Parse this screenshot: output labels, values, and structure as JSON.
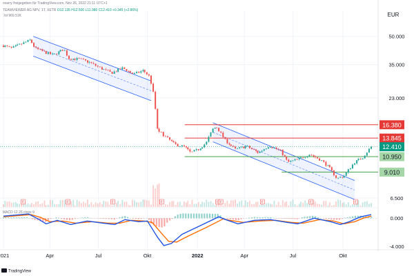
{
  "header": {
    "published_by": "ovarry freigegeben für TradingView.com, Nov 26, 2022 21:11 UTC+1",
    "symbol_line": "TEAMVIEWER AG NPV, 1T, XETR",
    "ohlc_values": "O12.135 H12.500 L11.980 C12.410 +0.345 (+2.86%)",
    "volume_line": "Vol 969.51K",
    "currency": "EUR"
  },
  "footer": {
    "brand": "TradingView"
  },
  "macd_label": "MACD 12 26 close 9",
  "colors": {
    "up": "#26a69a",
    "down": "#ef5350",
    "channel": "#2962ff",
    "resistance": "#e53935",
    "support": "#43a047",
    "macd_line": "#1e53e5",
    "signal_line": "#ff6d00",
    "price_tag": "#089981"
  },
  "chart_data": {
    "type": "candlestick",
    "y_scale": "log",
    "ylim": [
      5.8,
      62
    ],
    "price_ticks": [
      50.0,
      35.0,
      23.0,
      6.5
    ],
    "price_tick_labels": [
      "50.000",
      "35.000",
      "23.000",
      "6.500"
    ],
    "x_tick_labels": [
      "2021",
      "Apr",
      "Jul",
      "Okt",
      "2022",
      "Apr",
      "Jul",
      "Okt"
    ],
    "x_tick_dates": [
      "2021-01-04",
      "2021-04-01",
      "2021-07-01",
      "2021-10-01",
      "2022-01-03",
      "2022-04-01",
      "2022-07-01",
      "2022-10-03"
    ],
    "price_path": [
      [
        "2021-01-04",
        44.5
      ],
      [
        "2021-01-20",
        43.0
      ],
      [
        "2021-02-08",
        45.5
      ],
      [
        "2021-02-24",
        47.8
      ],
      [
        "2021-03-05",
        43.0
      ],
      [
        "2021-03-22",
        41.0
      ],
      [
        "2021-04-08",
        39.5
      ],
      [
        "2021-04-28",
        42.5
      ],
      [
        "2021-05-07",
        37.8
      ],
      [
        "2021-05-27",
        37.5
      ],
      [
        "2021-06-15",
        36.0
      ],
      [
        "2021-07-05",
        33.5
      ],
      [
        "2021-07-26",
        31.5
      ],
      [
        "2021-08-16",
        33.5
      ],
      [
        "2021-09-06",
        31.0
      ],
      [
        "2021-09-24",
        32.5
      ],
      [
        "2021-10-06",
        30.0
      ],
      [
        "2021-10-13",
        24.0
      ],
      [
        "2021-10-20",
        15.5
      ],
      [
        "2021-11-05",
        14.0
      ],
      [
        "2021-11-22",
        12.8
      ],
      [
        "2021-12-10",
        12.4
      ],
      [
        "2021-12-22",
        11.5
      ],
      [
        "2022-01-05",
        12.0
      ],
      [
        "2022-01-20",
        13.0
      ],
      [
        "2022-02-01",
        15.5
      ],
      [
        "2022-02-08",
        16.0
      ],
      [
        "2022-02-24",
        13.5
      ],
      [
        "2022-03-15",
        12.0
      ],
      [
        "2022-04-05",
        12.5
      ],
      [
        "2022-04-28",
        11.5
      ],
      [
        "2022-05-18",
        12.6
      ],
      [
        "2022-06-08",
        11.8
      ],
      [
        "2022-06-22",
        10.2
      ],
      [
        "2022-07-12",
        10.6
      ],
      [
        "2022-08-02",
        11.3
      ],
      [
        "2022-08-23",
        10.5
      ],
      [
        "2022-09-08",
        9.5
      ],
      [
        "2022-09-22",
        8.3
      ],
      [
        "2022-10-06",
        8.6
      ],
      [
        "2022-10-25",
        10.2
      ],
      [
        "2022-11-09",
        10.8
      ],
      [
        "2022-11-25",
        12.41
      ]
    ],
    "resistance_levels": [
      16.38,
      13.845
    ],
    "support_levels": [
      10.95,
      9.01
    ],
    "last_price": 12.41,
    "price_labels": [
      {
        "value": 16.38,
        "text": "16.380",
        "kind": "resistance"
      },
      {
        "value": 13.845,
        "text": "13.845",
        "kind": "resistance"
      },
      {
        "value": 12.41,
        "text": "12.410",
        "kind": "last"
      },
      {
        "value": 10.95,
        "text": "10.950",
        "kind": "support"
      },
      {
        "value": 9.01,
        "text": "9.010",
        "kind": "support"
      }
    ],
    "channels": [
      {
        "start": [
          "2021-03-01",
          50.0
        ],
        "end": [
          "2021-10-08",
          28.5
        ],
        "width_log": 0.25
      },
      {
        "start": [
          "2022-02-01",
          16.8
        ],
        "end": [
          "2022-10-25",
          8.1
        ],
        "width_log": 0.24
      }
    ],
    "earnings_marker_dates": [
      "2021-02-10",
      "2021-05-05",
      "2021-07-28",
      "2021-10-28",
      "2022-02-10",
      "2022-02-16",
      "2022-05-05",
      "2022-08-04",
      "2022-10-27"
    ],
    "earnings_marker_text": "E",
    "macd": {
      "ylim": [
        -4.3,
        1.3
      ],
      "ticks": [
        0.0,
        -4.0
      ],
      "tick_labels": [
        "0.000",
        "-4.000"
      ],
      "macd_path": [
        [
          "2021-01-04",
          0.3
        ],
        [
          "2021-02-20",
          0.6
        ],
        [
          "2021-03-10",
          -0.1
        ],
        [
          "2021-03-25",
          -0.8
        ],
        [
          "2021-04-15",
          -0.3
        ],
        [
          "2021-05-10",
          -0.9
        ],
        [
          "2021-06-10",
          -0.4
        ],
        [
          "2021-07-10",
          -0.7
        ],
        [
          "2021-08-01",
          -0.9
        ],
        [
          "2021-08-20",
          -0.2
        ],
        [
          "2021-09-15",
          -0.5
        ],
        [
          "2021-10-01",
          -0.4
        ],
        [
          "2021-10-20",
          -2.7
        ],
        [
          "2021-11-01",
          -3.9
        ],
        [
          "2021-11-15",
          -3.6
        ],
        [
          "2021-12-05",
          -2.3
        ],
        [
          "2022-01-10",
          -1.0
        ],
        [
          "2022-02-12",
          0.2
        ],
        [
          "2022-02-25",
          -0.2
        ],
        [
          "2022-03-20",
          -0.8
        ],
        [
          "2022-04-20",
          -0.3
        ],
        [
          "2022-05-20",
          -0.2
        ],
        [
          "2022-06-20",
          -0.6
        ],
        [
          "2022-07-10",
          -0.8
        ],
        [
          "2022-08-10",
          0.0
        ],
        [
          "2022-09-10",
          -0.5
        ],
        [
          "2022-09-28",
          -0.9
        ],
        [
          "2022-10-15",
          -0.5
        ],
        [
          "2022-11-05",
          0.2
        ],
        [
          "2022-11-25",
          0.5
        ]
      ],
      "signal_path": [
        [
          "2021-01-04",
          0.2
        ],
        [
          "2021-02-25",
          0.5
        ],
        [
          "2021-03-15",
          0.1
        ],
        [
          "2021-04-01",
          -0.5
        ],
        [
          "2021-04-25",
          -0.4
        ],
        [
          "2021-05-20",
          -0.7
        ],
        [
          "2021-06-20",
          -0.5
        ],
        [
          "2021-07-20",
          -0.7
        ],
        [
          "2021-08-10",
          -0.7
        ],
        [
          "2021-09-01",
          -0.3
        ],
        [
          "2021-09-25",
          -0.4
        ],
        [
          "2021-10-10",
          -0.6
        ],
        [
          "2021-10-28",
          -2.2
        ],
        [
          "2021-11-10",
          -3.3
        ],
        [
          "2021-11-25",
          -3.4
        ],
        [
          "2021-12-15",
          -2.6
        ],
        [
          "2022-01-20",
          -1.3
        ],
        [
          "2022-02-20",
          -0.1
        ],
        [
          "2022-03-05",
          -0.3
        ],
        [
          "2022-03-30",
          -0.6
        ],
        [
          "2022-04-30",
          -0.4
        ],
        [
          "2022-05-30",
          -0.3
        ],
        [
          "2022-06-28",
          -0.6
        ],
        [
          "2022-07-20",
          -0.7
        ],
        [
          "2022-08-20",
          -0.2
        ],
        [
          "2022-09-15",
          -0.4
        ],
        [
          "2022-10-05",
          -0.8
        ],
        [
          "2022-10-25",
          -0.5
        ],
        [
          "2022-11-10",
          0.0
        ],
        [
          "2022-11-25",
          0.3
        ]
      ]
    }
  }
}
